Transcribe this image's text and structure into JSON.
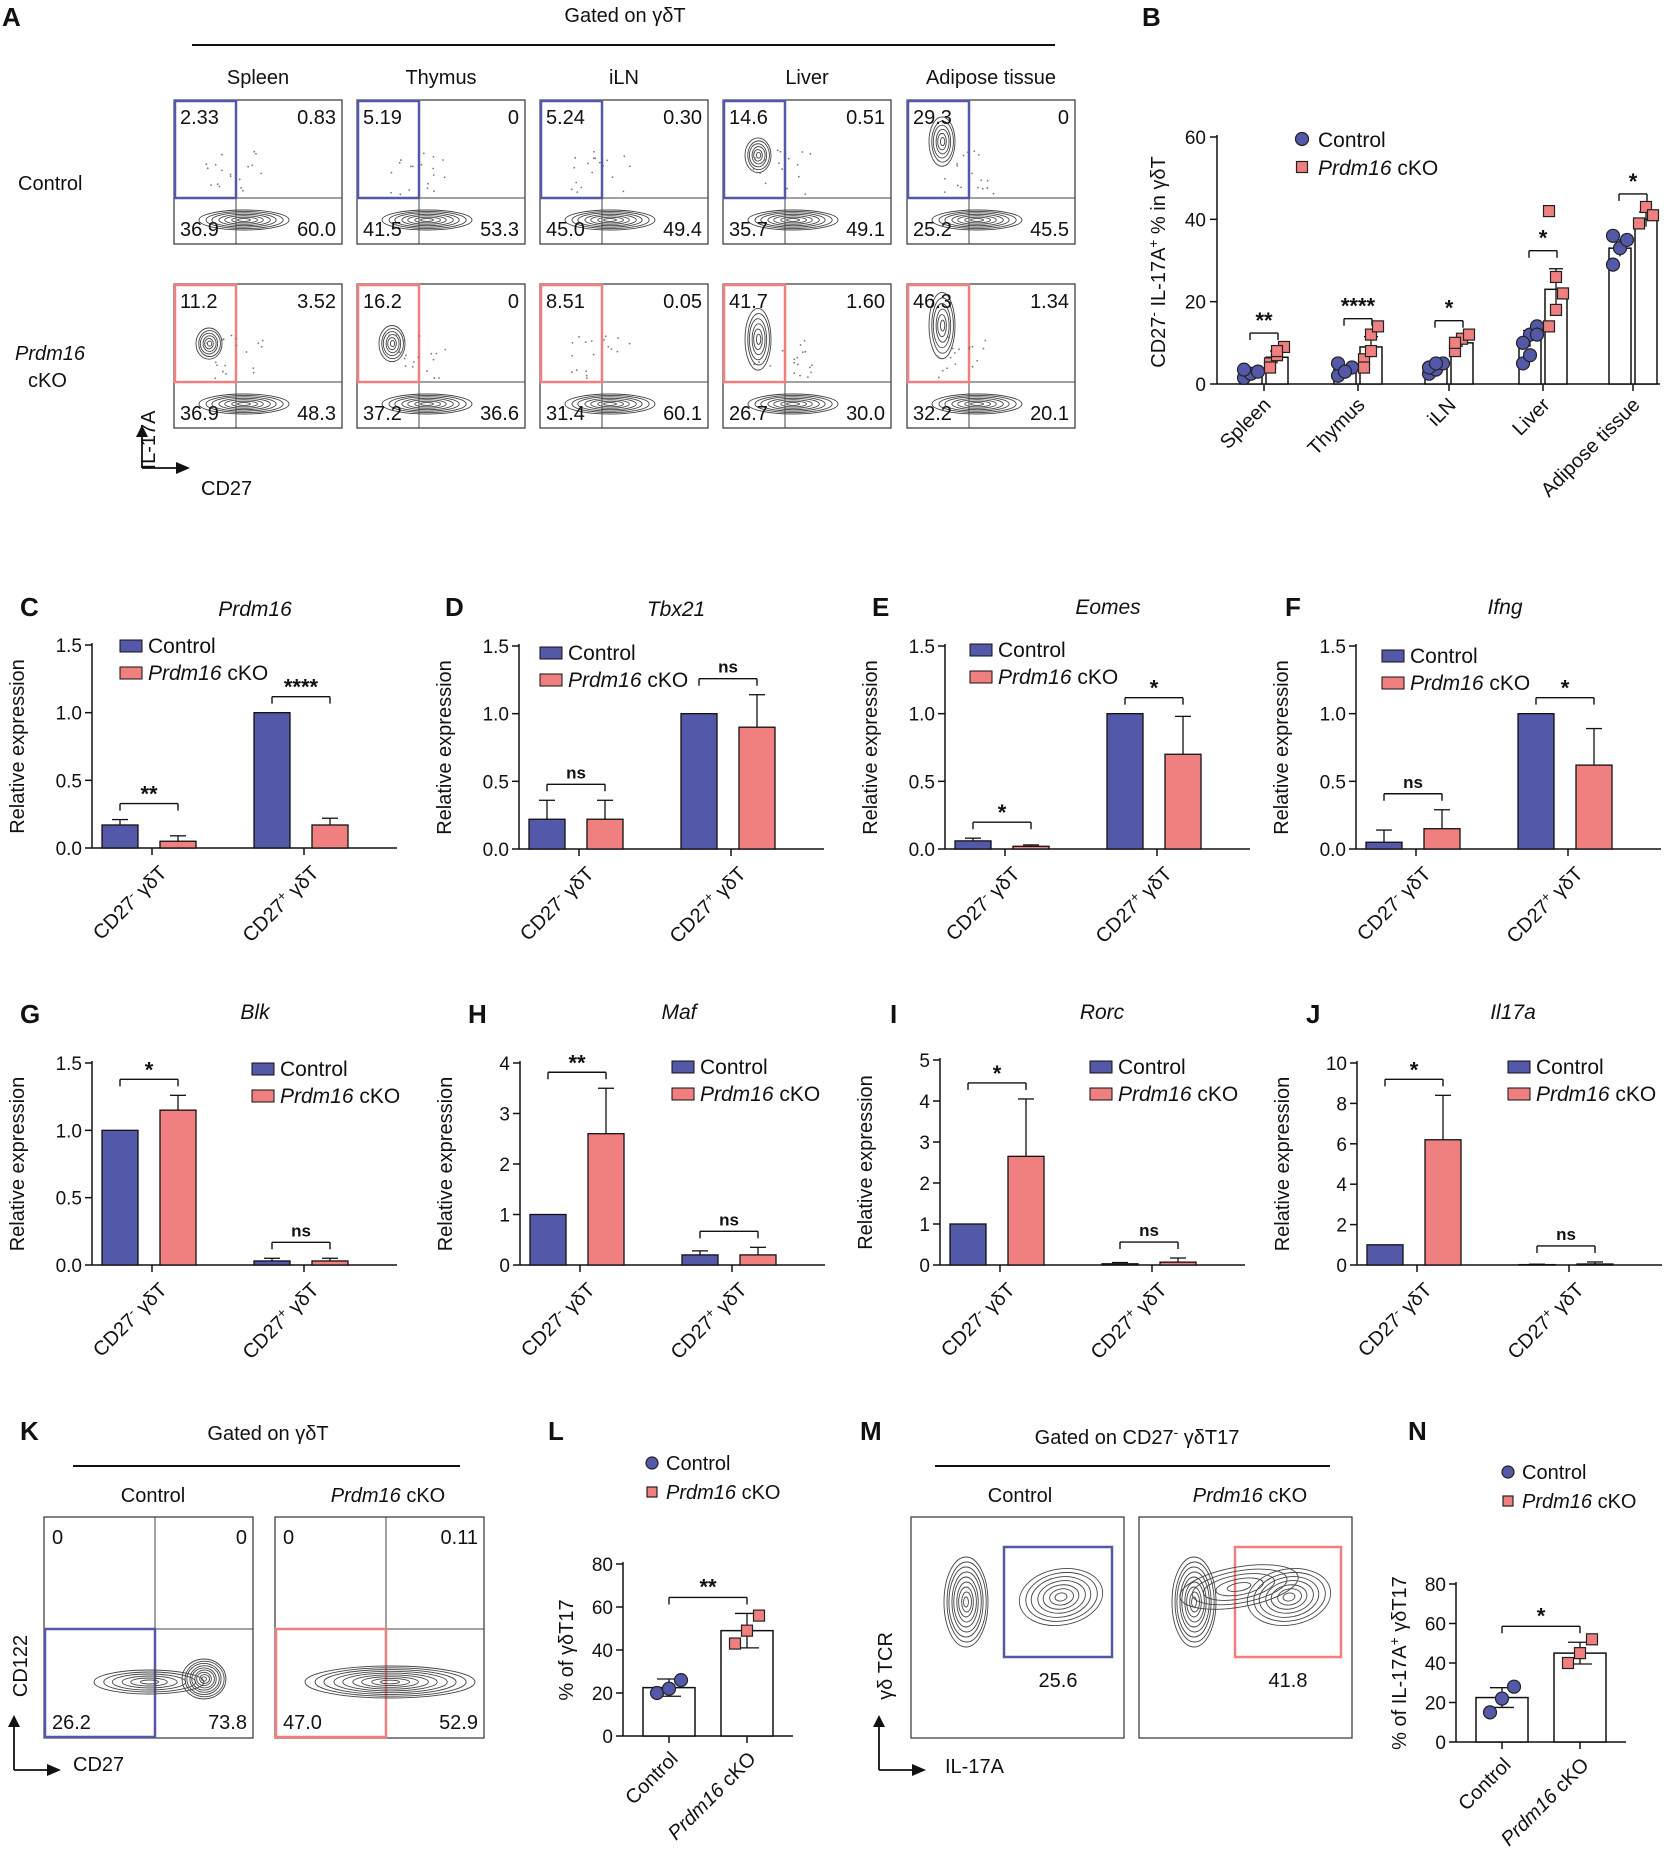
{
  "colors": {
    "control": "#5358a8",
    "cko": "#f08080",
    "axis": "#111111",
    "contour": "#444444"
  },
  "figure": {
    "A": {
      "letter": "A",
      "header": "Gated on γδT",
      "tissues": [
        "Spleen",
        "Thymus",
        "iLN",
        "Liver",
        "Adipose tissue"
      ],
      "row_labels": {
        "control": "Control",
        "cko_gene": "Prdm16",
        "cko_suffix": "cKO"
      },
      "y_axis": "IL-17A",
      "x_axis": "CD27",
      "quadrants": {
        "control": [
          [
            "2.33",
            "0.83",
            "36.9",
            "60.0"
          ],
          [
            "5.19",
            "0",
            "41.5",
            "53.3"
          ],
          [
            "5.24",
            "0.30",
            "45.0",
            "49.4"
          ],
          [
            "14.6",
            "0.51",
            "35.7",
            "49.1"
          ],
          [
            "29.3",
            "0",
            "25.2",
            "45.5"
          ]
        ],
        "cko": [
          [
            "11.2",
            "3.52",
            "36.9",
            "48.3"
          ],
          [
            "16.2",
            "0",
            "37.2",
            "36.6"
          ],
          [
            "8.51",
            "0.05",
            "31.4",
            "60.1"
          ],
          [
            "41.7",
            "1.60",
            "26.7",
            "30.0"
          ],
          [
            "46.3",
            "1.34",
            "32.2",
            "20.1"
          ]
        ]
      }
    },
    "K": {
      "letter": "K",
      "header": "Gated on γδT",
      "columns": [
        "Control",
        "Prdm16 cKO"
      ],
      "y_axis": "CD122",
      "x_axis": "CD27",
      "quadrants": [
        [
          "0",
          "0",
          "26.2",
          "73.8"
        ],
        [
          "0",
          "0.11",
          "47.0",
          "52.9"
        ]
      ]
    },
    "M": {
      "letter": "M",
      "header": "Gated on CD27⁻ γδT17",
      "columns": [
        "Control",
        "Prdm16 cKO"
      ],
      "y_axis": "γδ TCR",
      "x_axis": "IL-17A",
      "gates": [
        "25.6",
        "41.8"
      ]
    }
  },
  "chart_data": [
    {
      "panel": "B",
      "type": "bar",
      "ylabel": "CD27⁻ IL-17A⁺ % in γδT",
      "ylim": [
        0,
        60
      ],
      "yticks": [
        0,
        20,
        40,
        60
      ],
      "categories": [
        "Spleen",
        "Thymus",
        "iLN",
        "Liver",
        "Adipose tissue"
      ],
      "legend": [
        "Control",
        "Prdm16 cKO"
      ],
      "series": [
        {
          "name": "Control",
          "values": [
            2.5,
            3.5,
            4,
            11,
            33
          ],
          "err": [
            0.5,
            0.8,
            0.8,
            2,
            2
          ],
          "points": [
            [
              1.5,
              2.5,
              3,
              3.5
            ],
            [
              2,
              3,
              4,
              5,
              3
            ],
            [
              2.5,
              3.5,
              5,
              4,
              5
            ],
            [
              5,
              12,
              14,
              10,
              7,
              12
            ],
            [
              29,
              33,
              35,
              36
            ]
          ]
        },
        {
          "name": "Prdm16 cKO",
          "values": [
            6.5,
            9,
            10,
            23,
            40
          ],
          "err": [
            1.5,
            2.5,
            1,
            5,
            1.8
          ],
          "points": [
            [
              5,
              7,
              9,
              4,
              8
            ],
            [
              6,
              12,
              14,
              4,
              8
            ],
            [
              8,
              11,
              12,
              10
            ],
            [
              42,
              18,
              22,
              14,
              26
            ],
            [
              39,
              43,
              41
            ]
          ]
        }
      ],
      "significance": [
        "**",
        "****",
        "*",
        "*",
        "*"
      ]
    },
    {
      "panel": "C",
      "type": "bar",
      "title": "Prdm16",
      "ylabel": "Relative expression",
      "ylim": [
        0,
        1.5
      ],
      "yticks": [
        "0.0",
        "0.5",
        "1.0",
        "1.5"
      ],
      "categories": [
        "CD27⁻ γδT",
        "CD27⁺ γδT"
      ],
      "series": [
        {
          "name": "Control",
          "values": [
            0.17,
            1.0
          ],
          "err": [
            0.04,
            0
          ]
        },
        {
          "name": "Prdm16 cKO",
          "values": [
            0.05,
            0.17
          ],
          "err": [
            0.04,
            0.05
          ]
        }
      ],
      "significance": [
        "**",
        "****"
      ]
    },
    {
      "panel": "D",
      "type": "bar",
      "title": "Tbx21",
      "ylabel": "Relative expression",
      "ylim": [
        0,
        1.5
      ],
      "yticks": [
        "0.0",
        "0.5",
        "1.0",
        "1.5"
      ],
      "categories": [
        "CD27⁻ γδT",
        "CD27⁺ γδT"
      ],
      "series": [
        {
          "name": "Control",
          "values": [
            0.22,
            1.0
          ],
          "err": [
            0.14,
            0
          ]
        },
        {
          "name": "Prdm16 cKO",
          "values": [
            0.22,
            0.9
          ],
          "err": [
            0.14,
            0.24
          ]
        }
      ],
      "significance": [
        "ns",
        "ns"
      ]
    },
    {
      "panel": "E",
      "type": "bar",
      "title": "Eomes",
      "ylabel": "Relative expression",
      "ylim": [
        0,
        1.5
      ],
      "yticks": [
        "0.0",
        "0.5",
        "1.0",
        "1.5"
      ],
      "categories": [
        "CD27⁻ γδT",
        "CD27⁺ γδT"
      ],
      "series": [
        {
          "name": "Control",
          "values": [
            0.06,
            1.0
          ],
          "err": [
            0.02,
            0
          ]
        },
        {
          "name": "Prdm16 cKO",
          "values": [
            0.02,
            0.7
          ],
          "err": [
            0.01,
            0.28
          ]
        }
      ],
      "significance": [
        "*",
        "*"
      ]
    },
    {
      "panel": "F",
      "type": "bar",
      "title": "Ifng",
      "ylabel": "Relative expression",
      "ylim": [
        0,
        1.5
      ],
      "yticks": [
        "0.0",
        "0.5",
        "1.0",
        "1.5"
      ],
      "categories": [
        "CD27⁻ γδT",
        "CD27⁺ γδT"
      ],
      "series": [
        {
          "name": "Control",
          "values": [
            0.05,
            1.0
          ],
          "err": [
            0.09,
            0
          ]
        },
        {
          "name": "Prdm16 cKO",
          "values": [
            0.15,
            0.62
          ],
          "err": [
            0.14,
            0.27
          ]
        }
      ],
      "significance": [
        "ns",
        "*"
      ]
    },
    {
      "panel": "G",
      "type": "bar",
      "title": "Blk",
      "ylabel": "Relative expression",
      "ylim": [
        0,
        1.5
      ],
      "yticks": [
        "0.0",
        "0.5",
        "1.0",
        "1.5"
      ],
      "categories": [
        "CD27⁻ γδT",
        "CD27⁺ γδT"
      ],
      "series": [
        {
          "name": "Control",
          "values": [
            1.0,
            0.03
          ],
          "err": [
            0,
            0.02
          ]
        },
        {
          "name": "Prdm16 cKO",
          "values": [
            1.15,
            0.03
          ],
          "err": [
            0.11,
            0.02
          ]
        }
      ],
      "significance": [
        "*",
        "ns"
      ]
    },
    {
      "panel": "H",
      "type": "bar",
      "title": "Maf",
      "ylabel": "Relative expression",
      "ylim": [
        0,
        4
      ],
      "yticks": [
        "0",
        "1",
        "2",
        "3",
        "4"
      ],
      "categories": [
        "CD27⁻ γδT",
        "CD27⁺ γδT"
      ],
      "series": [
        {
          "name": "Control",
          "values": [
            1.0,
            0.2
          ],
          "err": [
            0,
            0.08
          ]
        },
        {
          "name": "Prdm16 cKO",
          "values": [
            2.6,
            0.2
          ],
          "err": [
            0.9,
            0.15
          ]
        }
      ],
      "significance": [
        "**",
        "ns"
      ]
    },
    {
      "panel": "I",
      "type": "bar",
      "title": "Rorc",
      "ylabel": "Relative expression",
      "ylim": [
        0,
        5
      ],
      "yticks": [
        "0",
        "1",
        "2",
        "3",
        "4",
        "5"
      ],
      "categories": [
        "CD27⁻ γδT",
        "CD27⁺ γδT"
      ],
      "series": [
        {
          "name": "Control",
          "values": [
            1.0,
            0.03
          ],
          "err": [
            0,
            0.03
          ]
        },
        {
          "name": "Prdm16 cKO",
          "values": [
            2.65,
            0.07
          ],
          "err": [
            1.4,
            0.1
          ]
        }
      ],
      "significance": [
        "*",
        "ns"
      ]
    },
    {
      "panel": "J",
      "type": "bar",
      "title": "Il17a",
      "ylabel": "Relative expression",
      "ylim": [
        0,
        10
      ],
      "yticks": [
        "0",
        "2",
        "4",
        "6",
        "8",
        "10"
      ],
      "categories": [
        "CD27⁻ γδT",
        "CD27⁺ γδT"
      ],
      "series": [
        {
          "name": "Control",
          "values": [
            1.0,
            0.02
          ],
          "err": [
            0,
            0.02
          ]
        },
        {
          "name": "Prdm16 cKO",
          "values": [
            6.2,
            0.05
          ],
          "err": [
            2.2,
            0.1
          ]
        }
      ],
      "significance": [
        "*",
        "ns"
      ]
    },
    {
      "panel": "L",
      "type": "bar",
      "ylabel": "% of γδT17",
      "ylim": [
        0,
        80
      ],
      "yticks": [
        "0",
        "20",
        "40",
        "60",
        "80"
      ],
      "categories": [
        "Control",
        "Prdm16 cKO"
      ],
      "values": [
        22.5,
        49
      ],
      "err": [
        4,
        8
      ],
      "points": [
        [
          20,
          22,
          26
        ],
        [
          43,
          49,
          56
        ]
      ],
      "significance": "**"
    },
    {
      "panel": "N",
      "type": "bar",
      "ylabel": "% of IL-17A⁺ γδT17",
      "ylim": [
        0,
        80
      ],
      "yticks": [
        "0",
        "20",
        "40",
        "60",
        "80"
      ],
      "categories": [
        "Control",
        "Prdm16 cKO"
      ],
      "values": [
        22.5,
        45
      ],
      "err": [
        5,
        5.5
      ],
      "points": [
        [
          15,
          22,
          28
        ],
        [
          40,
          45,
          52
        ]
      ],
      "significance": "*"
    }
  ]
}
